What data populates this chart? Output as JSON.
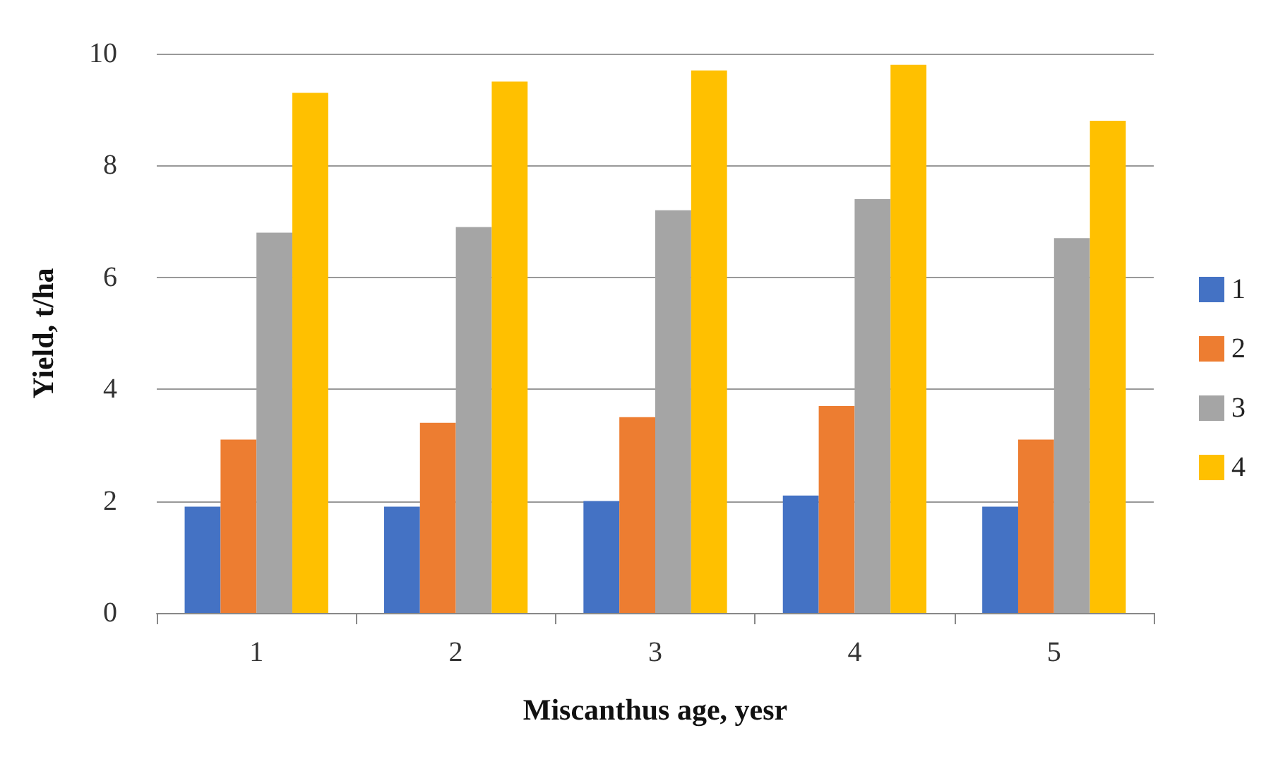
{
  "chart_data": {
    "type": "bar",
    "xlabel": "Miscanthus age, yesr",
    "ylabel": "Yield, t/ha",
    "categories": [
      "1",
      "2",
      "3",
      "4",
      "5"
    ],
    "series": [
      {
        "name": "1",
        "color": "#4472c4",
        "values": [
          1.9,
          1.9,
          2.0,
          2.1,
          1.9
        ]
      },
      {
        "name": "2",
        "color": "#ed7d31",
        "values": [
          3.1,
          3.4,
          3.5,
          3.7,
          3.1
        ]
      },
      {
        "name": "3",
        "color": "#a5a5a5",
        "values": [
          6.8,
          6.9,
          7.2,
          7.4,
          6.7
        ]
      },
      {
        "name": "4",
        "color": "#ffc000",
        "values": [
          9.3,
          9.5,
          9.7,
          9.8,
          8.8
        ]
      }
    ],
    "ylim": [
      0,
      10
    ],
    "yticks": [
      0,
      2,
      4,
      6,
      8,
      10
    ],
    "grid": "y",
    "legend": "right"
  }
}
